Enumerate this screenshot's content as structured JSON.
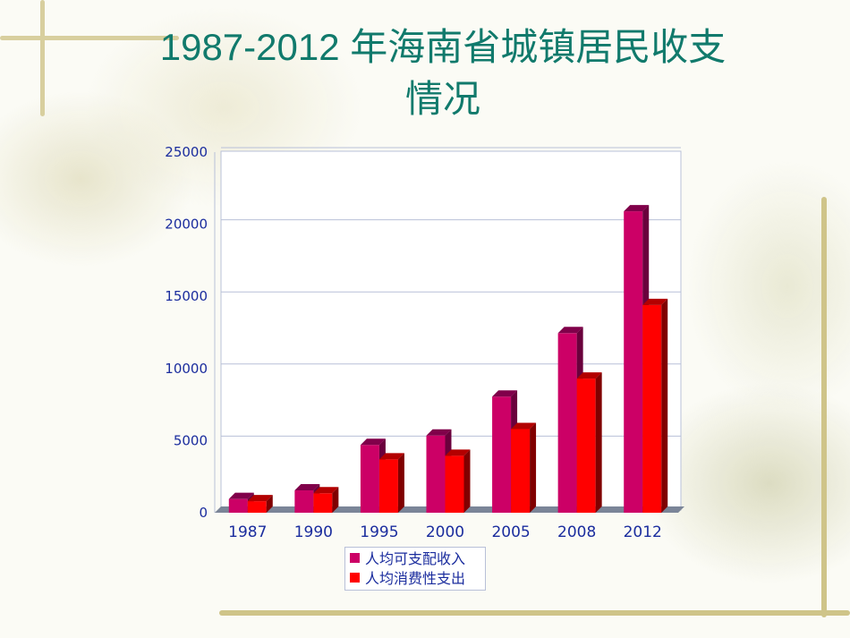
{
  "title": {
    "line1": "1987-2012 年海南省城镇居民收支",
    "line2": "情况"
  },
  "colors": {
    "income": "#cc0066",
    "expense": "#ff0000",
    "axis_text": "#1b2d9e",
    "title": "#117a6c"
  },
  "chart_data": {
    "type": "bar",
    "title": "1987-2012 年海南省城镇居民收支情况",
    "categories": [
      "1987",
      "1990",
      "1995",
      "2000",
      "2005",
      "2008",
      "2012"
    ],
    "series": [
      {
        "name": "人均可支配收入",
        "values": [
          950,
          1550,
          4700,
          5350,
          8050,
          12450,
          20900
        ]
      },
      {
        "name": "人均消费性支出",
        "values": [
          800,
          1350,
          3700,
          3950,
          5800,
          9300,
          14400
        ]
      }
    ],
    "ylim": [
      0,
      25000
    ],
    "yticks": [
      "0",
      "5000",
      "10000",
      "15000",
      "20000",
      "25000"
    ],
    "grid": true,
    "legend": "bottom"
  }
}
